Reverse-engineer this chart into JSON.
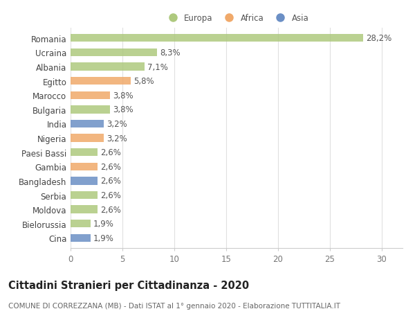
{
  "categories": [
    "Romania",
    "Ucraina",
    "Albania",
    "Egitto",
    "Marocco",
    "Bulgaria",
    "India",
    "Nigeria",
    "Paesi Bassi",
    "Gambia",
    "Bangladesh",
    "Serbia",
    "Moldova",
    "Bielorussia",
    "Cina"
  ],
  "values": [
    28.2,
    8.3,
    7.1,
    5.8,
    3.8,
    3.8,
    3.2,
    3.2,
    2.6,
    2.6,
    2.6,
    2.6,
    2.6,
    1.9,
    1.9
  ],
  "labels": [
    "28,2%",
    "8,3%",
    "7,1%",
    "5,8%",
    "3,8%",
    "3,8%",
    "3,2%",
    "3,2%",
    "2,6%",
    "2,6%",
    "2,6%",
    "2,6%",
    "2,6%",
    "1,9%",
    "1,9%"
  ],
  "colors": [
    "#aec97e",
    "#aec97e",
    "#aec97e",
    "#f0a96a",
    "#f0a96a",
    "#aec97e",
    "#6b8fc5",
    "#f0a96a",
    "#aec97e",
    "#f0a96a",
    "#6b8fc5",
    "#aec97e",
    "#aec97e",
    "#aec97e",
    "#6b8fc5"
  ],
  "legend_labels": [
    "Europa",
    "Africa",
    "Asia"
  ],
  "legend_colors": [
    "#aec97e",
    "#f0a96a",
    "#6b8fc5"
  ],
  "title": "Cittadini Stranieri per Cittadinanza - 2020",
  "subtitle": "COMUNE DI CORREZZANA (MB) - Dati ISTAT al 1° gennaio 2020 - Elaborazione TUTTITALIA.IT",
  "xlim": [
    0,
    32
  ],
  "xticks": [
    0,
    5,
    10,
    15,
    20,
    25,
    30
  ],
  "background_color": "#ffffff",
  "bar_height": 0.55,
  "label_fontsize": 8.5,
  "tick_fontsize": 8.5,
  "title_fontsize": 10.5,
  "subtitle_fontsize": 7.5
}
